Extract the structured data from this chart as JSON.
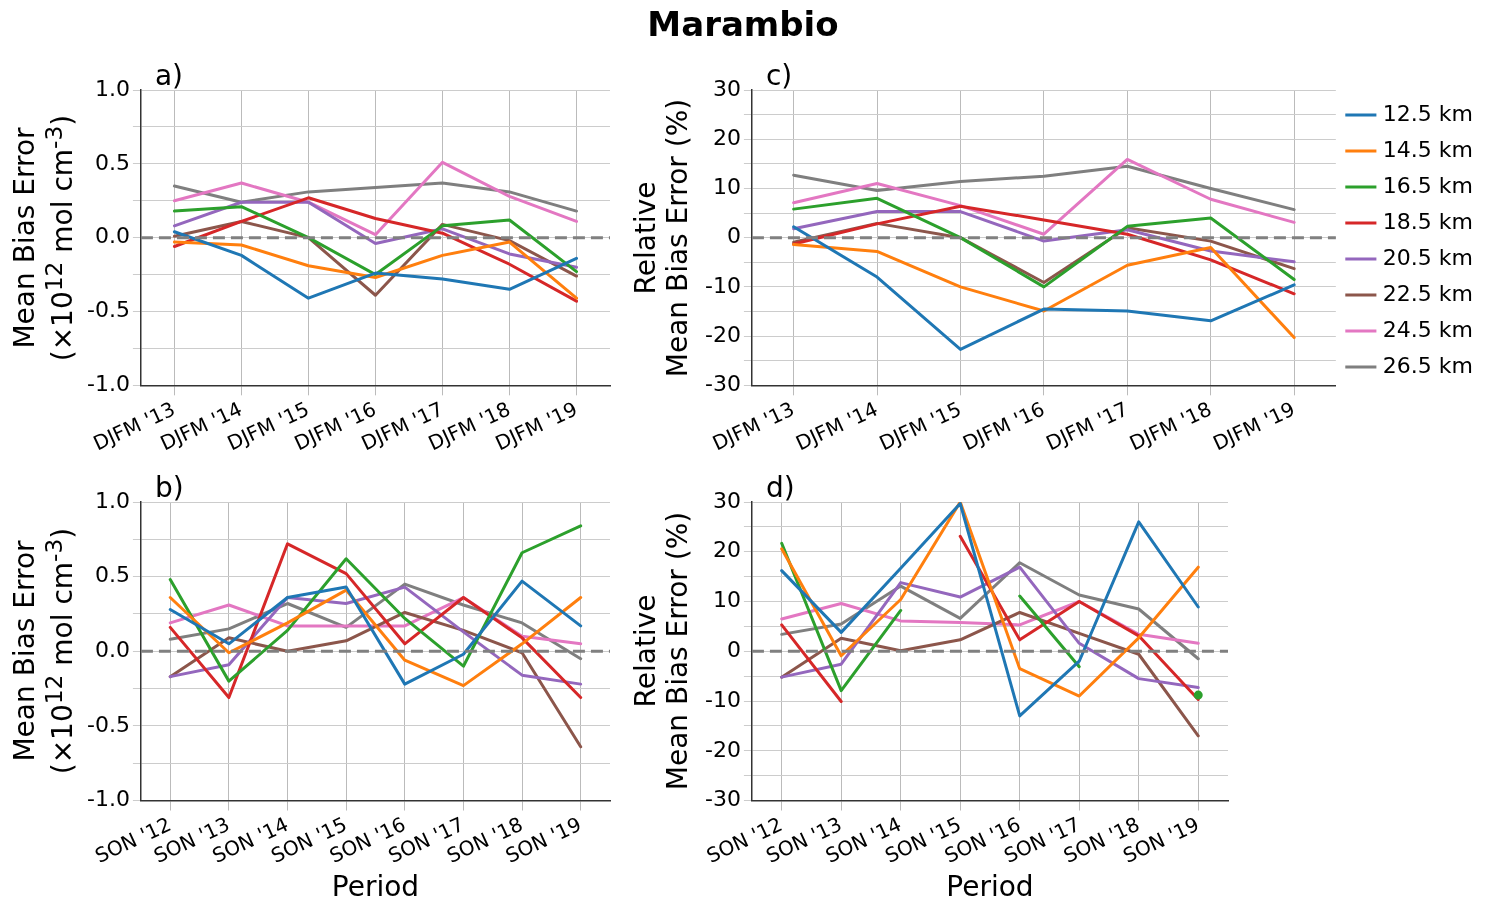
{
  "chart_data": [
    {
      "type": "line",
      "annotations": [
        "a)"
      ],
      "ylabel": "Mean Bias Error\n(×10$^{12}$ mol cm$^{-3}$)",
      "categories": [
        "DJFM '13",
        "DJFM '14",
        "DJFM '15",
        "DJFM '16",
        "DJFM '17",
        "DJFM '18",
        "DJFM '19"
      ],
      "ylim": [
        -1,
        1
      ],
      "yticks": [
        {
          "value": -1,
          "label": "-1.0"
        },
        {
          "value": -0.75,
          "label": null
        },
        {
          "value": -0.5,
          "label": "-0.5"
        },
        {
          "value": -0.25,
          "label": null
        },
        {
          "value": 0,
          "label": "0.0"
        },
        {
          "value": 0.25,
          "label": null
        },
        {
          "value": 0.5,
          "label": "0.5"
        },
        {
          "value": 0.75,
          "label": null
        },
        {
          "value": 1,
          "label": "1.0"
        }
      ],
      "grid": true,
      "marker": "none",
      "legend": false,
      "ref_lines": [
        {
          "axis": "y",
          "value": 0,
          "color": "#808080",
          "line_style": "dashed"
        }
      ],
      "series": [
        {
          "color": "#1f77b4",
          "values": [
            0.04,
            -0.12,
            -0.41,
            -0.24,
            -0.28,
            -0.35,
            -0.14
          ]
        },
        {
          "color": "#ff7f0e",
          "values": [
            -0.03,
            -0.05,
            -0.19,
            -0.27,
            -0.12,
            -0.03,
            -0.41
          ]
        },
        {
          "color": "#2ca02c",
          "values": [
            0.18,
            0.21,
            0,
            -0.25,
            0.08,
            0.12,
            -0.23
          ]
        },
        {
          "color": "#d62728",
          "values": [
            -0.06,
            0.11,
            0.27,
            0.13,
            0.03,
            -0.18,
            -0.43
          ]
        },
        {
          "color": "#9467bd",
          "values": [
            0.08,
            0.24,
            0.24,
            -0.04,
            0.06,
            -0.11,
            -0.2
          ]
        },
        {
          "color": "#8c564b",
          "values": [
            0.01,
            0.11,
            0,
            -0.39,
            0.09,
            -0.02,
            -0.26
          ]
        },
        {
          "color": "#e377c2",
          "values": [
            0.25,
            0.37,
            0.24,
            0.02,
            0.51,
            0.28,
            0.11
          ]
        },
        {
          "color": "#7f7f7f",
          "values": [
            0.35,
            0.24,
            0.31,
            0.34,
            0.37,
            0.31,
            0.18
          ]
        }
      ]
    },
    {
      "type": "line",
      "title": "Marambio",
      "annotations": [
        "c)"
      ],
      "ylabel": "Relative\nMean Bias Error (%)",
      "categories": [
        "DJFM '13",
        "DJFM '14",
        "DJFM '15",
        "DJFM '16",
        "DJFM '17",
        "DJFM '18",
        "DJFM '19"
      ],
      "ylim": [
        -30,
        30
      ],
      "yticks": [
        -30,
        {
          "value": -25,
          "label": null
        },
        -20,
        {
          "value": -15,
          "label": null
        },
        -10,
        {
          "value": -5,
          "label": null
        },
        0,
        {
          "value": 5,
          "label": null
        },
        10,
        {
          "value": 15,
          "label": null
        },
        20,
        {
          "value": 25,
          "label": null
        },
        30
      ],
      "grid": true,
      "marker": "none",
      "legend": "right",
      "ref_lines": [
        {
          "axis": "y",
          "value": 0,
          "color": "#808080",
          "line_style": "dashed"
        }
      ],
      "series": [
        {
          "name": "12.5 km",
          "color": "#1f77b4",
          "values": [
            2.2,
            -8,
            -22.7,
            -14.5,
            -14.9,
            -16.9,
            -9.6
          ]
        },
        {
          "name": "14.5 km",
          "color": "#ff7f0e",
          "values": [
            -1.4,
            -2.8,
            -10,
            -14.9,
            -5.6,
            -2,
            -20.3
          ]
        },
        {
          "name": "16.5 km",
          "color": "#2ca02c",
          "values": [
            5.8,
            8,
            0,
            -10,
            2.3,
            4,
            -8.5
          ]
        },
        {
          "name": "18.5 km",
          "color": "#d62728",
          "values": [
            -1.3,
            2.8,
            6.4,
            3.6,
            0.7,
            -4.5,
            -11.4
          ]
        },
        {
          "name": "20.5 km",
          "color": "#9467bd",
          "values": [
            1.8,
            5.3,
            5.3,
            -0.7,
            1.6,
            -2.7,
            -4.9
          ]
        },
        {
          "name": "22.5 km",
          "color": "#8c564b",
          "values": [
            -0.9,
            2.9,
            0,
            -9.1,
            2,
            -0.7,
            -6.3
          ]
        },
        {
          "name": "24.5 km",
          "color": "#e377c2",
          "values": [
            7.1,
            11,
            6.5,
            0.7,
            15.9,
            7.8,
            3.1
          ]
        },
        {
          "name": "26.5 km",
          "color": "#7f7f7f",
          "values": [
            12.7,
            9.6,
            11.4,
            12.5,
            14.5,
            10,
            5.7
          ]
        }
      ]
    },
    {
      "type": "line",
      "annotations": [
        "b)"
      ],
      "xlabel": "Period",
      "ylabel": "Mean Bias Error\n(×10$^{12}$ mol cm$^{-3}$)",
      "categories": [
        "SON '12",
        "SON '13",
        "SON '14",
        "SON '15",
        "SON '16",
        "SON '17",
        "SON '18",
        "SON '19"
      ],
      "ylim": [
        -1,
        1
      ],
      "yticks": [
        {
          "value": -1,
          "label": "-1.0"
        },
        {
          "value": -0.75,
          "label": null
        },
        {
          "value": -0.5,
          "label": "-0.5"
        },
        {
          "value": -0.25,
          "label": null
        },
        {
          "value": 0,
          "label": "0.0"
        },
        {
          "value": 0.25,
          "label": null
        },
        {
          "value": 0.5,
          "label": "0.5"
        },
        {
          "value": 0.75,
          "label": null
        },
        {
          "value": 1,
          "label": "1.0"
        }
      ],
      "grid": true,
      "marker": "none",
      "legend": false,
      "ref_lines": [
        {
          "axis": "y",
          "value": 0,
          "color": "#808080",
          "line_style": "dashed"
        }
      ],
      "series": [
        {
          "color": "#1f77b4",
          "values": [
            0.28,
            0.05,
            0.36,
            0.43,
            -0.22,
            -0.02,
            0.47,
            0.17
          ]
        },
        {
          "color": "#ff7f0e",
          "values": [
            0.36,
            -0.01,
            0.19,
            0.41,
            -0.06,
            -0.23,
            0.05,
            0.36
          ]
        },
        {
          "color": "#2ca02c",
          "values": [
            0.48,
            -0.2,
            0.14,
            0.62,
            0.22,
            -0.1,
            0.66,
            0.84
          ]
        },
        {
          "color": "#d62728",
          "values": [
            0.16,
            -0.31,
            0.72,
            0.52,
            0.05,
            0.36,
            0.09,
            -0.31
          ]
        },
        {
          "color": "#9467bd",
          "values": [
            -0.17,
            -0.09,
            0.36,
            0.32,
            0.43,
            0.13,
            -0.16,
            -0.22
          ]
        },
        {
          "color": "#8c564b",
          "values": [
            -0.17,
            0.09,
            0,
            0.07,
            0.26,
            0.14,
            -0.01,
            -0.64
          ]
        },
        {
          "color": "#e377c2",
          "values": [
            0.19,
            0.31,
            0.17,
            0.17,
            0.17,
            0.36,
            0.1,
            0.05
          ]
        },
        {
          "color": "#7f7f7f",
          "values": [
            0.08,
            0.15,
            0.32,
            0.16,
            0.45,
            0.31,
            0.19,
            -0.05
          ]
        }
      ]
    },
    {
      "type": "line",
      "annotations": [
        "d)"
      ],
      "xlabel": "Period",
      "ylabel": "Relative\nMean Bias Error (%)",
      "categories": [
        "SON '12",
        "SON '13",
        "SON '14",
        "SON '15",
        "SON '16",
        "SON '17",
        "SON '18",
        "SON '19"
      ],
      "ylim": [
        -30,
        30
      ],
      "yticks": [
        -30,
        {
          "value": -25,
          "label": null
        },
        -20,
        {
          "value": -15,
          "label": null
        },
        -10,
        {
          "value": -5,
          "label": null
        },
        0,
        {
          "value": 5,
          "label": null
        },
        10,
        {
          "value": 15,
          "label": null
        },
        20,
        {
          "value": 25,
          "label": null
        },
        30
      ],
      "grid": true,
      "marker": "none",
      "legend": false,
      "ref_lines": [
        {
          "axis": "y",
          "value": 0,
          "color": "#808080",
          "line_style": "dashed"
        }
      ],
      "series": [
        {
          "color": "#1f77b4",
          "values": [
            16.2,
            3.8,
            16.7,
            29.7,
            -13,
            -2,
            26,
            8.9
          ]
        },
        {
          "color": "#ff7f0e",
          "values": [
            20.6,
            -0.9,
            10.4,
            30,
            -3.5,
            -9,
            2.7,
            16.9
          ]
        },
        {
          "color": "#2ca02c",
          "values": [
            21.7,
            -7.9,
            8.2,
            null,
            11.1,
            -3.1,
            null,
            -8.8
          ]
        },
        {
          "color": "#d62728",
          "values": [
            5.3,
            -10.1,
            null,
            23.1,
            2.3,
            10,
            3.1,
            -9.7
          ]
        },
        {
          "color": "#9467bd",
          "values": [
            -5.2,
            -2.6,
            13.8,
            10.9,
            16.9,
            1.6,
            -5.5,
            -7.3
          ]
        },
        {
          "color": "#8c564b",
          "values": [
            -5.2,
            2.6,
            0.1,
            2.3,
            7.8,
            3.6,
            -0.6,
            -17
          ]
        },
        {
          "color": "#e377c2",
          "values": [
            6.5,
            9.6,
            6.1,
            5.8,
            5.3,
            10,
            3.4,
            1.6
          ]
        },
        {
          "color": "#7f7f7f",
          "values": [
            3.4,
            5.5,
            13.1,
            6.6,
            17.8,
            11.3,
            8.5,
            -1.5
          ]
        }
      ]
    }
  ]
}
